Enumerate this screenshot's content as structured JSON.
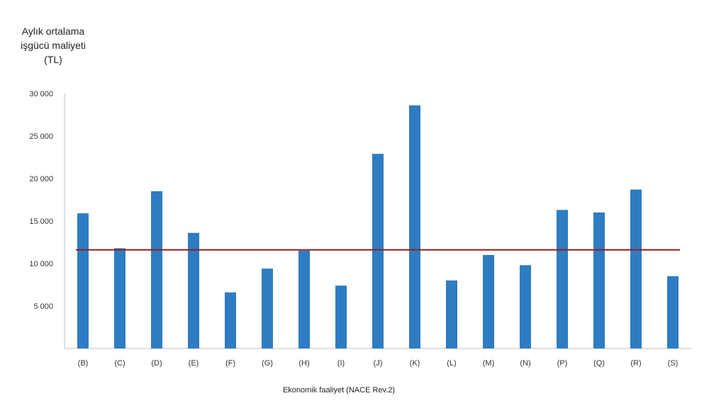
{
  "chart_data": {
    "type": "bar",
    "ylabel_lines": [
      "Aylık ortalama",
      "işgücü maliyeti",
      "(TL)"
    ],
    "xlabel": "Ekonomik faaliyet (NACE Rev.2)",
    "categories": [
      "(B)",
      "(C)",
      "(D)",
      "(E)",
      "(F)",
      "(G)",
      "(H)",
      "(I)",
      "(J)",
      "(K)",
      "(L)",
      "(M)",
      "(N)",
      "(P)",
      "(Q)",
      "(R)",
      "(S)"
    ],
    "values": [
      15900,
      11800,
      18500,
      13600,
      6600,
      9400,
      11500,
      7400,
      22900,
      28600,
      8000,
      11000,
      9800,
      16300,
      16000,
      18700,
      8500
    ],
    "reference_line": 11600,
    "yticks": [
      5000,
      10000,
      15000,
      20000,
      25000,
      30000
    ],
    "ytick_labels": [
      "5 000",
      "10 000",
      "15 000",
      "20 000",
      "25 000",
      "30 000"
    ],
    "ylim": [
      0,
      30000
    ],
    "grid": false,
    "colors": {
      "bar": "#2e7cc2",
      "reference_line": "#9b1b1b",
      "axis": "#bfbfbf"
    }
  }
}
